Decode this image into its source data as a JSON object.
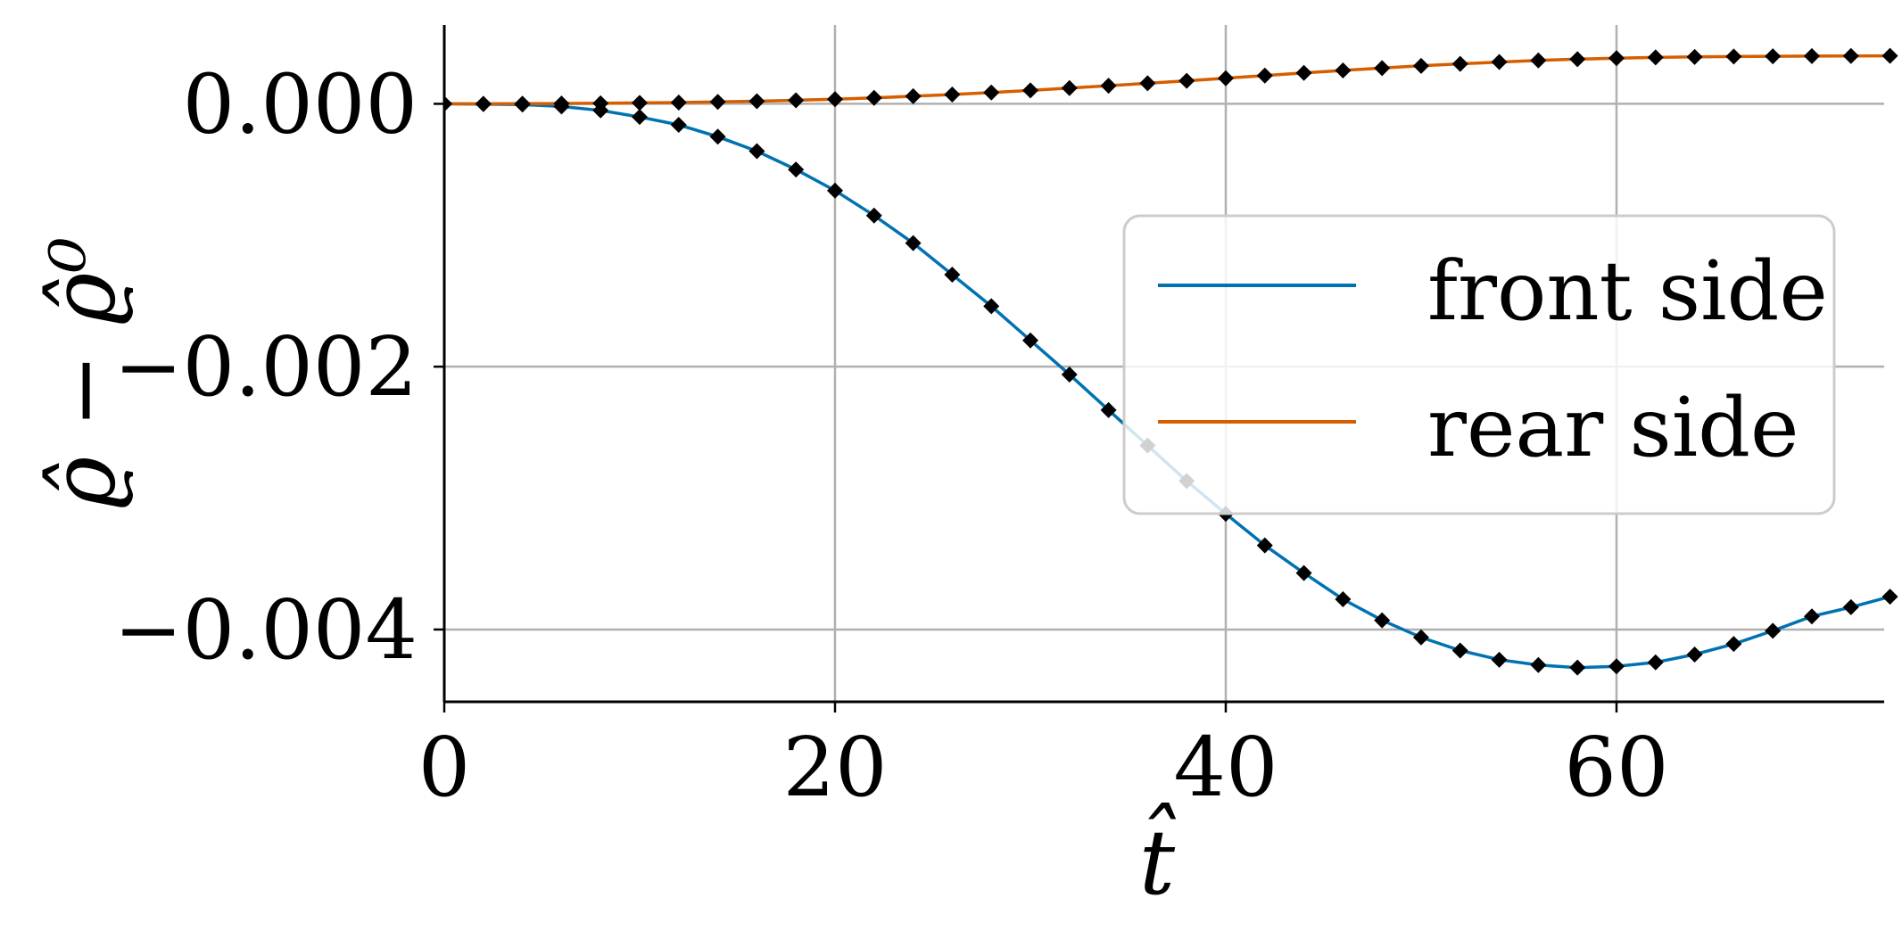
{
  "colors": {
    "front": "#0072B2",
    "rear": "#D55E00",
    "marker": "#000000",
    "grid": "#b0b0b0",
    "axis": "#000000",
    "legend_border": "#cccccc"
  },
  "chart_data": {
    "type": "line",
    "xlabel": "t̂",
    "ylabel": "ϱ̂ − ϱ̂⁰",
    "xlim": [
      0,
      73.7
    ],
    "ylim": [
      -0.00455,
      0.0006
    ],
    "xticks": [
      0,
      20,
      40,
      60
    ],
    "xtick_labels": [
      "0",
      "20",
      "40",
      "60"
    ],
    "yticks": [
      0.0,
      -0.002,
      -0.004
    ],
    "ytick_labels": [
      "0.000",
      "−0.002",
      "−0.004"
    ],
    "grid": true,
    "legend": {
      "position": "center-right",
      "entries": [
        "front side",
        "rear side"
      ]
    },
    "series": [
      {
        "name": "front side",
        "color_key": "front",
        "marker": "diamond",
        "x": [
          0,
          2,
          4,
          6,
          8,
          10,
          12,
          14,
          16,
          18,
          20,
          22,
          24,
          26,
          28,
          30,
          32,
          34,
          36,
          38,
          40,
          42,
          44,
          46,
          48,
          50,
          52,
          54,
          56,
          58,
          60,
          62,
          64,
          66,
          68,
          70,
          72,
          74
        ],
        "y": [
          0.0,
          -2e-06,
          -6e-06,
          -2e-05,
          -5e-05,
          -0.0001,
          -0.00016,
          -0.00025,
          -0.00036,
          -0.0005,
          -0.00066,
          -0.00085,
          -0.00106,
          -0.0013,
          -0.00154,
          -0.0018,
          -0.00206,
          -0.00233,
          -0.0026,
          -0.00287,
          -0.00312,
          -0.00336,
          -0.00357,
          -0.00377,
          -0.00393,
          -0.00406,
          -0.00416,
          -0.00423,
          -0.00427,
          -0.00429,
          -0.00428,
          -0.00425,
          -0.00419,
          -0.00411,
          -0.00401,
          -0.0039,
          -0.00383,
          -0.00375
        ]
      },
      {
        "name": "rear side",
        "color_key": "rear",
        "marker": "diamond",
        "x": [
          0,
          2,
          4,
          6,
          8,
          10,
          12,
          14,
          16,
          18,
          20,
          22,
          24,
          26,
          28,
          30,
          32,
          34,
          36,
          38,
          40,
          42,
          44,
          46,
          48,
          50,
          52,
          54,
          56,
          58,
          60,
          62,
          64,
          66,
          68,
          70,
          72,
          74
        ],
        "y": [
          0.0,
          0.0,
          1e-06,
          2e-06,
          4e-06,
          7e-06,
          1e-05,
          1.5e-05,
          2e-05,
          2.7e-05,
          3.5e-05,
          4.5e-05,
          5.8e-05,
          7.1e-05,
          8.6e-05,
          0.000102,
          0.00012,
          0.000138,
          0.000156,
          0.000175,
          0.000195,
          0.000215,
          0.000235,
          0.000254,
          0.000272,
          0.000289,
          0.000304,
          0.000318,
          0.00033,
          0.00034,
          0.000347,
          0.000353,
          0.000357,
          0.00036,
          0.000362,
          0.000363,
          0.000364,
          0.000365
        ]
      }
    ]
  }
}
